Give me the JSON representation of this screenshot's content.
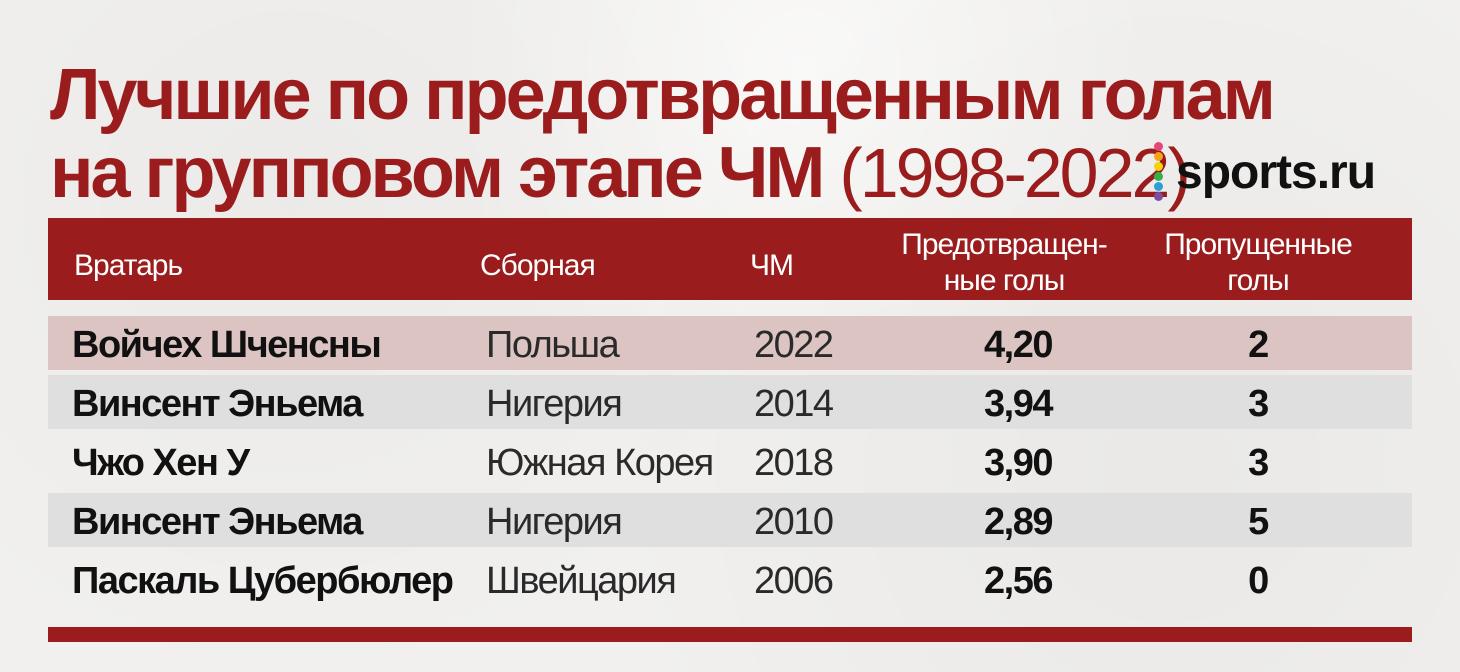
{
  "title": {
    "line1": "Лучшие по предотвращенным голам",
    "line2_main": "на групповом этапе ЧМ",
    "line2_years": "(1998-2022)"
  },
  "logo": {
    "text": "sports.ru",
    "dot_colors": [
      "#e8457a",
      "#f7a21b",
      "#f5d20a",
      "#33b24b",
      "#2a9fd8",
      "#7b4fa0"
    ]
  },
  "colors": {
    "accent": "#9a1c1c",
    "highlight_row": "#dcc4c2",
    "striped_row": "#dfdfdf"
  },
  "table": {
    "headers": {
      "goalkeeper": "Вратарь",
      "team": "Сборная",
      "world_cup": "ЧМ",
      "prevented_line1": "Предотвращен-",
      "prevented_line2": "ные голы",
      "conceded_line1": "Пропущенные",
      "conceded_line2": "голы"
    },
    "rows": [
      {
        "name": "Войчех Шченсны",
        "team": "Польша",
        "year": "2022",
        "prevented": "4,20",
        "conceded": "2"
      },
      {
        "name": "Винсент Эньема",
        "team": "Нигерия",
        "year": "2014",
        "prevented": "3,94",
        "conceded": "3"
      },
      {
        "name": "Чжо Хен У",
        "team": "Южная Корея",
        "year": "2018",
        "prevented": "3,90",
        "conceded": "3"
      },
      {
        "name": "Винсент Эньема",
        "team": "Нигерия",
        "year": "2010",
        "prevented": "2,89",
        "conceded": "5"
      },
      {
        "name": "Паскаль Цубербюлер",
        "team": "Швейцария",
        "year": "2006",
        "prevented": "2,56",
        "conceded": "0"
      }
    ]
  }
}
